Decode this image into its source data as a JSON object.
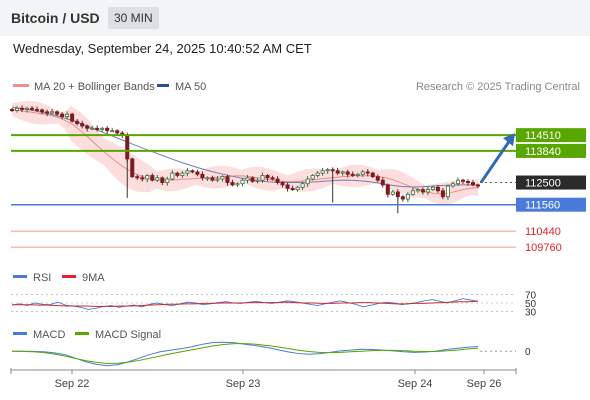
{
  "header": {
    "title": "Bitcoin / USD",
    "interval": "30 MIN"
  },
  "datetime": "Wednesday, September 24, 2025 10:40:52 AM CET",
  "legend": {
    "bb": "MA 20 + Bollinger Bands",
    "ma50": "MA 50",
    "credit": "Research © 2025 Trading Central"
  },
  "rsi_legend": {
    "rsi": "RSI",
    "ma": "9MA"
  },
  "macd_legend": {
    "macd": "MACD",
    "signal": "MACD Signal"
  },
  "colors": {
    "resistance": "#58a600",
    "support": "#4a7bd8",
    "pivot": "#2b2b2b",
    "target": "#e8202a",
    "arrow": "#2f6bb5",
    "bb_fill": "#fbd3d3",
    "ma50": "#6f7fb3",
    "candle_up": "#3c6b3c",
    "candle_down": "#7a1d1d"
  },
  "chart_data": [
    {
      "type": "candlestick",
      "title": "Bitcoin / USD",
      "x_ticks": [
        "Sep 22",
        "Sep 23",
        "Sep 24",
        "Sep 26"
      ],
      "price_range": [
        109300,
        116000
      ],
      "levels": [
        {
          "label": "114510",
          "value": 114510,
          "kind": "resistance"
        },
        {
          "label": "113840",
          "value": 113840,
          "kind": "resistance"
        },
        {
          "label": "112500",
          "value": 112500,
          "kind": "pivot"
        },
        {
          "label": "111560",
          "value": 111560,
          "kind": "support"
        },
        {
          "label": "110440",
          "value": 110440,
          "kind": "target"
        },
        {
          "label": "109760",
          "value": 109760,
          "kind": "target"
        }
      ],
      "close": [
        115550,
        115650,
        115600,
        115650,
        115600,
        115580,
        115500,
        115450,
        115500,
        115400,
        115300,
        115400,
        115100,
        115000,
        114900,
        114800,
        114800,
        114750,
        114800,
        114700,
        114700,
        114600,
        114500,
        113500,
        112750,
        112700,
        112650,
        112800,
        112600,
        112700,
        112500,
        112650,
        112900,
        112800,
        112900,
        113000,
        112950,
        112850,
        112700,
        112700,
        112600,
        112650,
        112750,
        112500,
        112400,
        112450,
        112600,
        112700,
        112550,
        112600,
        112800,
        112700,
        112650,
        112500,
        112400,
        112250,
        112200,
        112300,
        112450,
        112650,
        112800,
        112900,
        113000,
        113050,
        113000,
        112900,
        112950,
        112850,
        112800,
        112850,
        112950,
        112900,
        112750,
        112600,
        112400,
        112000,
        112100,
        111900,
        111800,
        112000,
        112150,
        112200,
        112100,
        112200,
        112300,
        112150,
        111900,
        112350,
        112450,
        112600,
        112550,
        112500,
        112400,
        112350
      ],
      "ma20": [
        115600,
        115560,
        115520,
        115480,
        115440,
        115400,
        115340,
        115260,
        115150,
        115000,
        114800,
        114570,
        114320,
        114060,
        113810,
        113580,
        113360,
        113160,
        112990,
        112850,
        112740,
        112660,
        112610,
        112590,
        112600,
        112620,
        112640,
        112650,
        112670,
        112690,
        112700,
        112720,
        112740,
        112760,
        112780,
        112780,
        112760,
        112720,
        112680,
        112630,
        112590,
        112560,
        112540,
        112540,
        112560,
        112590,
        112620,
        112650,
        112680,
        112710,
        112740,
        112760,
        112780,
        112790,
        112790,
        112780,
        112750,
        112700,
        112620,
        112520,
        112410,
        112300,
        112200,
        112110,
        112050,
        112020,
        112030,
        112080,
        112150,
        112220,
        112260,
        112290
      ],
      "ma50": [
        115700,
        115640,
        115570,
        115490,
        115400,
        115300,
        115180,
        115040,
        114880,
        114720,
        114560,
        114400,
        114240,
        114080,
        113920,
        113770,
        113620,
        113470,
        113330,
        113200,
        113080,
        112970,
        112870,
        112780,
        112700,
        112630,
        112570,
        112530,
        112510,
        112500,
        112500,
        112510,
        112530,
        112560,
        112590,
        112600,
        112590,
        112560,
        112510,
        112450,
        112380,
        112330,
        112310,
        112320,
        112340,
        112370,
        112390,
        112400,
        112400,
        112400
      ],
      "forecast": {
        "from": 112500,
        "to": 114510
      }
    },
    {
      "type": "line",
      "title": "RSI",
      "series": [
        {
          "name": "RSI",
          "values": [
            45,
            48,
            44,
            50,
            47,
            46,
            52,
            45,
            43,
            40,
            35,
            38,
            42,
            44,
            40,
            43,
            45,
            41,
            47,
            50,
            46,
            44,
            48,
            52,
            50,
            46,
            48,
            51,
            53,
            50,
            49,
            52,
            54,
            51,
            49,
            52,
            55,
            53,
            50,
            47,
            44,
            48,
            52,
            55,
            51,
            47,
            41,
            45,
            49,
            52,
            50,
            46,
            48,
            51,
            55,
            58,
            54,
            50,
            55,
            60,
            57,
            54
          ]
        },
        {
          "name": "9MA",
          "values": [
            46,
            46,
            46,
            45,
            45,
            44,
            43,
            43,
            43,
            42,
            42,
            42,
            43,
            43,
            44,
            45,
            46,
            47,
            47,
            48,
            48,
            49,
            49,
            50,
            50,
            50,
            51,
            51,
            51,
            51,
            52,
            51,
            50,
            50,
            49,
            49,
            50,
            50,
            51,
            51,
            50,
            49,
            48,
            48,
            49,
            49,
            50,
            51,
            52,
            53,
            53,
            54
          ]
        }
      ],
      "levels": [
        70,
        50,
        30
      ],
      "ylim": [
        15,
        85
      ]
    },
    {
      "type": "line",
      "title": "MACD",
      "series": [
        {
          "name": "MACD",
          "values": [
            0,
            0,
            -5,
            -20,
            -60,
            -120,
            -250,
            -380,
            -470,
            -520,
            -480,
            -380,
            -250,
            -120,
            -20,
            40,
            90,
            160,
            250,
            310,
            320,
            300,
            250,
            200,
            140,
            60,
            -20,
            -80,
            -110,
            -90,
            -40,
            10,
            40,
            70,
            60,
            40,
            10,
            -20,
            -40,
            -30,
            0,
            60,
            100,
            140,
            170
          ]
        },
        {
          "name": "MACD Signal",
          "values": [
            0,
            -5,
            -20,
            -50,
            -100,
            -170,
            -260,
            -340,
            -400,
            -440,
            -430,
            -390,
            -330,
            -250,
            -170,
            -90,
            -20,
            50,
            120,
            190,
            240,
            270,
            270,
            250,
            210,
            160,
            100,
            40,
            -10,
            -40,
            -50,
            -40,
            -20,
            0,
            20,
            30,
            30,
            20,
            0,
            -10,
            -10,
            10,
            40,
            80,
            110
          ]
        }
      ],
      "levels": [
        0
      ],
      "ylim": [
        -600,
        400
      ]
    }
  ]
}
